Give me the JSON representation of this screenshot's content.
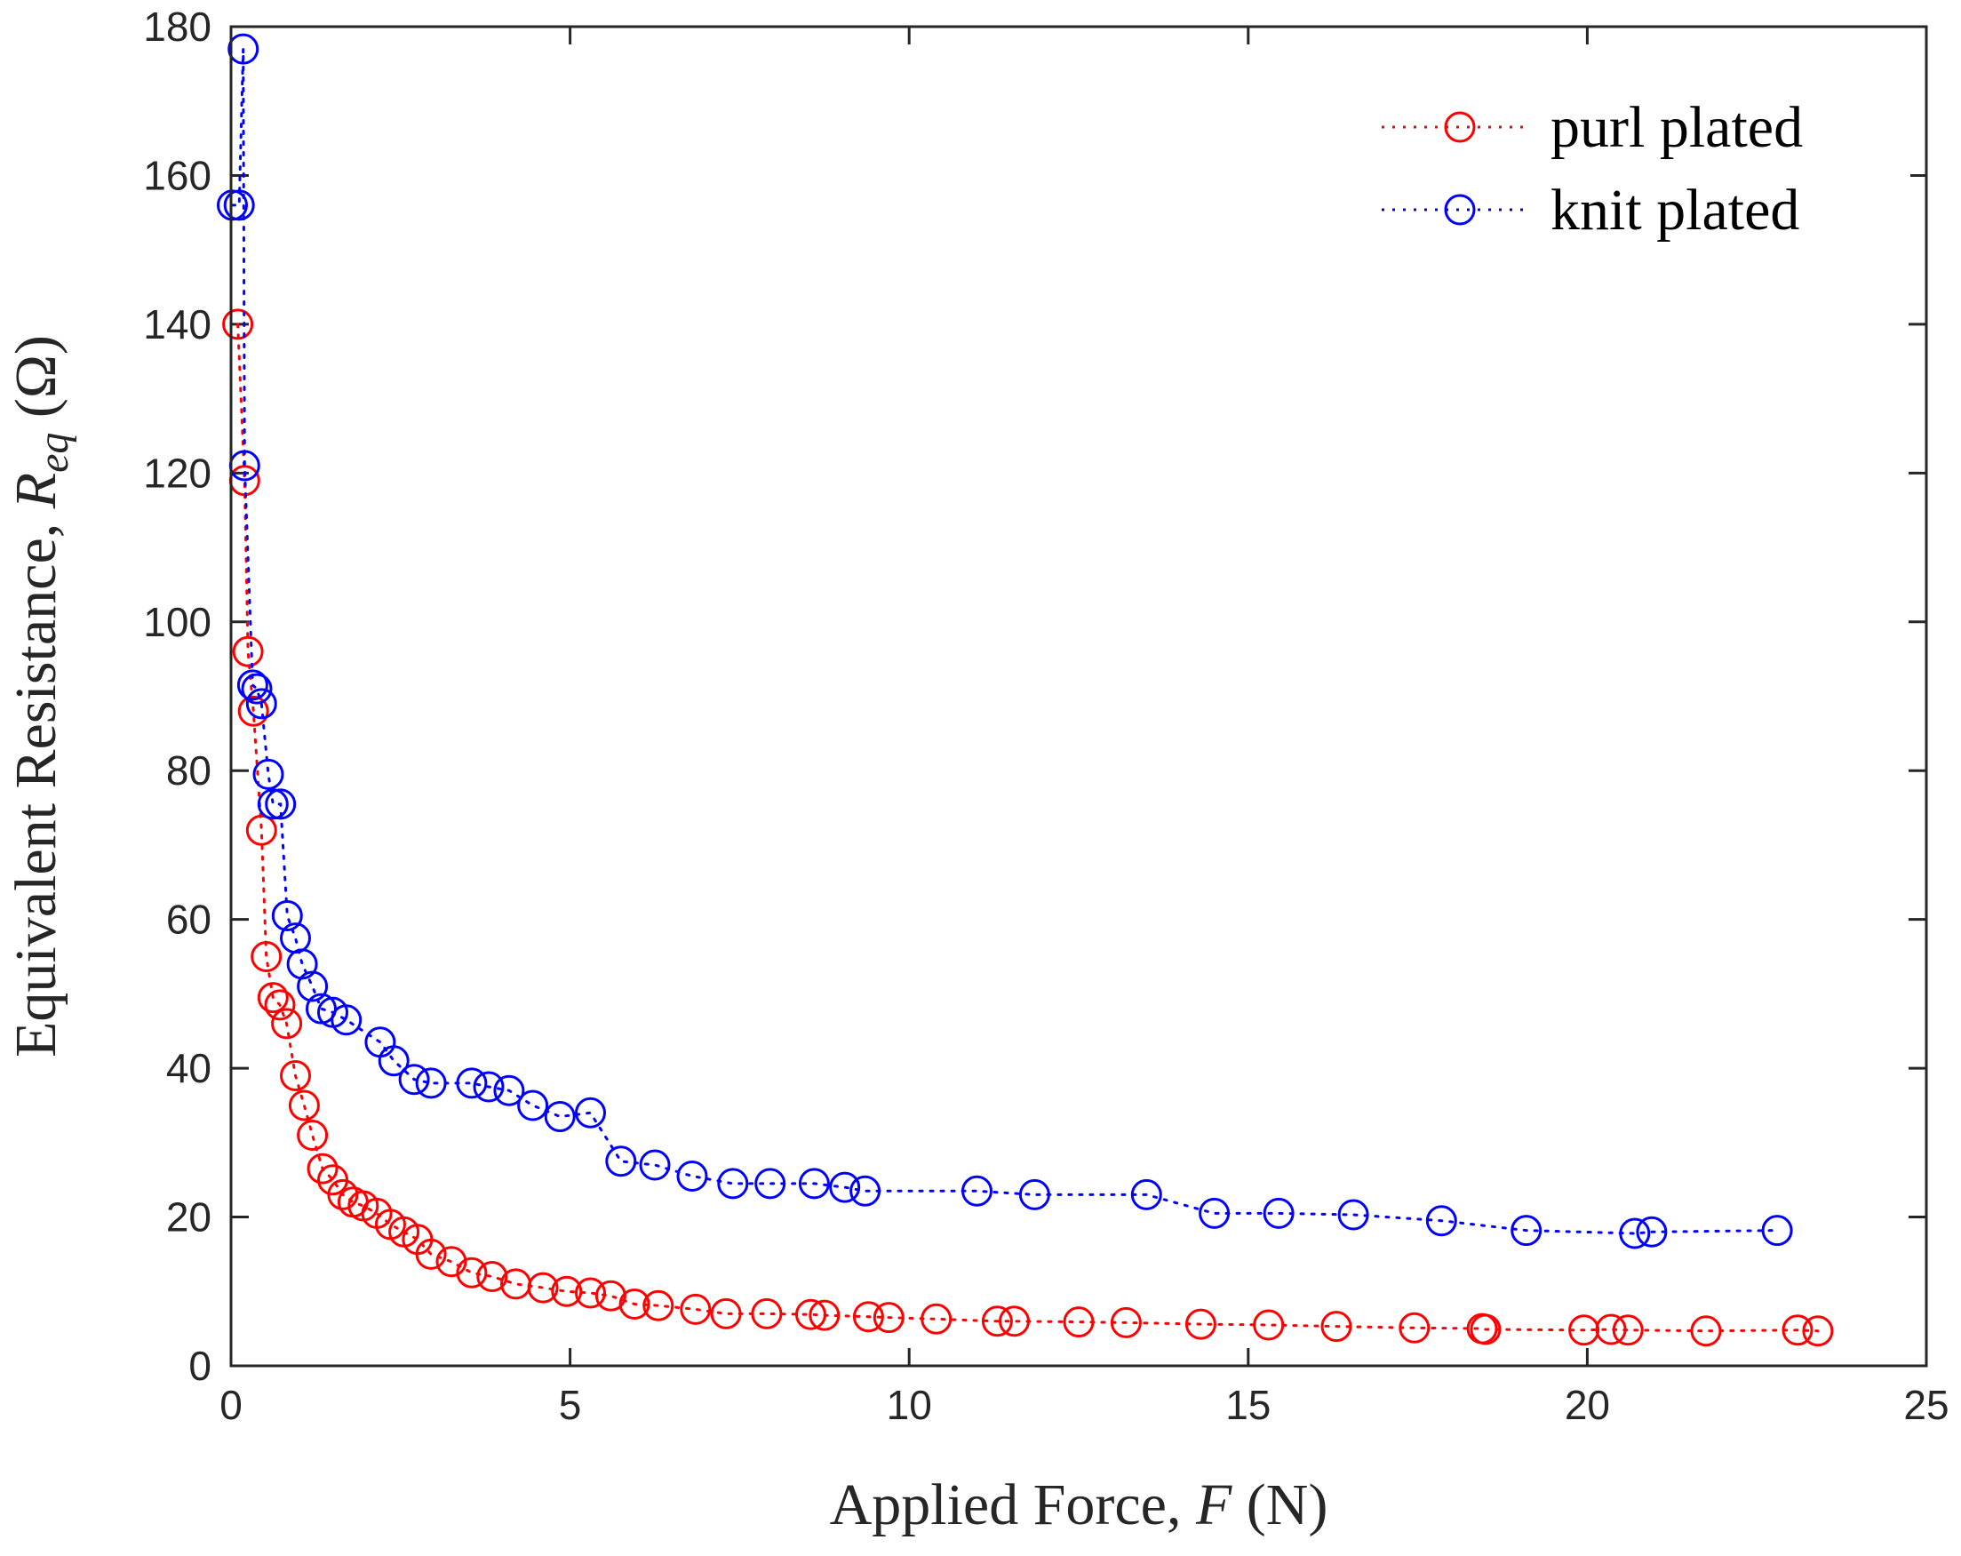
{
  "chart_data": {
    "type": "line",
    "title": "",
    "xlabel": {
      "prefix": "Applied Force, ",
      "var": "F",
      "unit": " (N)"
    },
    "ylabel": {
      "prefix": "Equivalent Resistance, ",
      "var": "R",
      "sub": "eq",
      "unit": " (Ω)"
    },
    "xlim": [
      0,
      25
    ],
    "ylim": [
      0,
      180
    ],
    "xticks": [
      0,
      5,
      10,
      15,
      20,
      25
    ],
    "yticks": [
      0,
      20,
      40,
      60,
      80,
      100,
      120,
      140,
      160,
      180
    ],
    "grid": false,
    "legend_position": "top-right",
    "series": [
      {
        "name": "purl plated",
        "color": "#ff0000",
        "marker": "circle",
        "line_style": "dotted",
        "x": [
          0.1,
          0.2,
          0.25,
          0.33,
          0.45,
          0.52,
          0.62,
          0.72,
          0.82,
          0.95,
          1.08,
          1.2,
          1.35,
          1.5,
          1.65,
          1.8,
          1.95,
          2.15,
          2.35,
          2.55,
          2.75,
          2.95,
          3.25,
          3.55,
          3.85,
          4.2,
          4.6,
          4.95,
          5.3,
          5.6,
          5.95,
          6.3,
          6.85,
          7.3,
          7.9,
          8.55,
          8.75,
          9.4,
          9.7,
          10.4,
          11.3,
          11.55,
          12.5,
          13.2,
          14.3,
          15.3,
          16.3,
          17.45,
          18.45,
          18.5,
          19.95,
          20.35,
          20.6,
          21.75,
          23.1,
          23.4
        ],
        "y": [
          140,
          119,
          96,
          88,
          72,
          55,
          49.5,
          48.5,
          46,
          39,
          35,
          31,
          26.5,
          25,
          23,
          22,
          21.5,
          20.5,
          19,
          18,
          17,
          15,
          14,
          12.5,
          12,
          11,
          10.5,
          10,
          9.8,
          9.4,
          8.3,
          8.1,
          7.6,
          7,
          7,
          6.9,
          6.8,
          6.6,
          6.5,
          6.3,
          6,
          6,
          5.9,
          5.8,
          5.6,
          5.5,
          5.3,
          5.1,
          5,
          4.9,
          4.8,
          4.9,
          4.8,
          4.7,
          4.8,
          4.7
        ]
      },
      {
        "name": "knit plated",
        "color": "#0000ff",
        "marker": "circle",
        "line_style": "dotted",
        "x": [
          0.02,
          0.12,
          0.18,
          0.2,
          0.32,
          0.38,
          0.45,
          0.55,
          0.62,
          0.73,
          0.83,
          0.95,
          1.05,
          1.2,
          1.33,
          1.5,
          1.7,
          2.2,
          2.4,
          2.7,
          2.95,
          3.55,
          3.8,
          4.1,
          4.45,
          4.85,
          5.3,
          5.75,
          6.25,
          6.8,
          7.4,
          7.95,
          8.6,
          9.05,
          9.35,
          11.0,
          11.85,
          13.5,
          14.5,
          15.45,
          16.55,
          17.85,
          19.1,
          20.7,
          20.95,
          22.8
        ],
        "y": [
          156,
          156,
          177,
          121,
          91.5,
          91,
          89,
          79.5,
          75.5,
          75.5,
          60.5,
          57.5,
          54,
          51,
          48,
          47.5,
          46.5,
          43.5,
          41,
          38.5,
          38,
          38,
          37.5,
          37,
          35,
          33.5,
          34,
          27.5,
          27,
          25.5,
          24.5,
          24.5,
          24.5,
          24,
          23.5,
          23.5,
          23,
          23,
          20.5,
          20.5,
          20.3,
          19.5,
          18.2,
          17.8,
          18,
          18.2
        ]
      }
    ]
  }
}
